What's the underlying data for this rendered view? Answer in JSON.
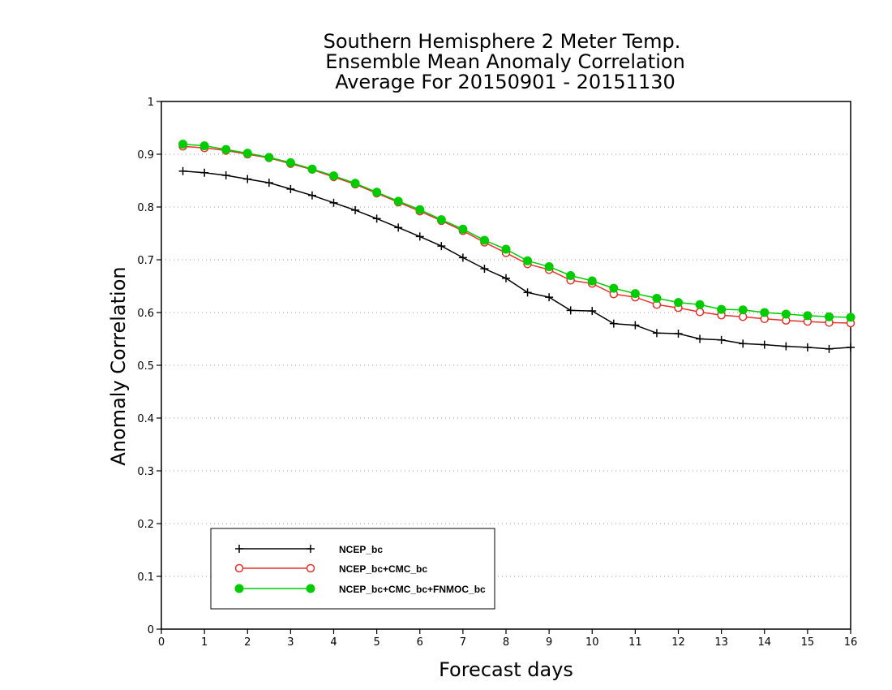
{
  "chart_data": {
    "type": "line",
    "title": [
      "Southern Hemisphere 2 Meter Temp.",
      "Ensemble Mean Anomaly Correlation",
      "Average For 20150901 - 20151130"
    ],
    "xlabel": "Forecast days",
    "ylabel": "Anomaly Correlation",
    "xlim": [
      0,
      16
    ],
    "ylim": [
      0,
      1
    ],
    "xticks": [
      0,
      1,
      2,
      3,
      4,
      5,
      6,
      7,
      8,
      9,
      10,
      11,
      12,
      13,
      14,
      15,
      16
    ],
    "yticks": [
      0,
      0.1,
      0.2,
      0.3,
      0.4,
      0.5,
      0.6,
      0.7,
      0.8,
      0.9,
      1
    ],
    "grid": "dotted horizontal",
    "legend_position": "bottom-left",
    "x": [
      0.5,
      1,
      1.5,
      2,
      2.5,
      3,
      3.5,
      4,
      4.5,
      5,
      5.5,
      6,
      6.5,
      7,
      7.5,
      8,
      8.5,
      9,
      9.5,
      10,
      10.5,
      11,
      11.5,
      12,
      12.5,
      13,
      13.5,
      14,
      14.5,
      15,
      15.5,
      16
    ],
    "series": [
      {
        "name": "NCEP_bc",
        "color": "#000000",
        "marker": "plus",
        "values": [
          0.868,
          0.865,
          0.86,
          0.853,
          0.846,
          0.834,
          0.822,
          0.808,
          0.794,
          0.778,
          0.761,
          0.744,
          0.726,
          0.704,
          0.683,
          0.665,
          0.638,
          0.629,
          0.604,
          0.603,
          0.579,
          0.576,
          0.561,
          0.56,
          0.55,
          0.548,
          0.541,
          0.539,
          0.536,
          0.534,
          0.531,
          0.534
        ]
      },
      {
        "name": "NCEP_bc+CMC_bc",
        "color": "#e8302a",
        "marker": "open-circle",
        "values": [
          0.915,
          0.912,
          0.907,
          0.9,
          0.893,
          0.882,
          0.871,
          0.857,
          0.843,
          0.826,
          0.809,
          0.792,
          0.774,
          0.755,
          0.733,
          0.713,
          0.692,
          0.681,
          0.661,
          0.655,
          0.635,
          0.629,
          0.615,
          0.609,
          0.601,
          0.595,
          0.592,
          0.588,
          0.585,
          0.583,
          0.581,
          0.58
        ]
      },
      {
        "name": "NCEP_bc+CMC_bc+FNMOC_bc",
        "color": "#00cc00",
        "marker": "filled-circle",
        "values": [
          0.919,
          0.916,
          0.909,
          0.902,
          0.894,
          0.884,
          0.872,
          0.859,
          0.845,
          0.828,
          0.811,
          0.795,
          0.776,
          0.758,
          0.737,
          0.72,
          0.698,
          0.687,
          0.67,
          0.66,
          0.646,
          0.636,
          0.627,
          0.619,
          0.615,
          0.606,
          0.605,
          0.6,
          0.597,
          0.594,
          0.592,
          0.591
        ]
      }
    ]
  }
}
